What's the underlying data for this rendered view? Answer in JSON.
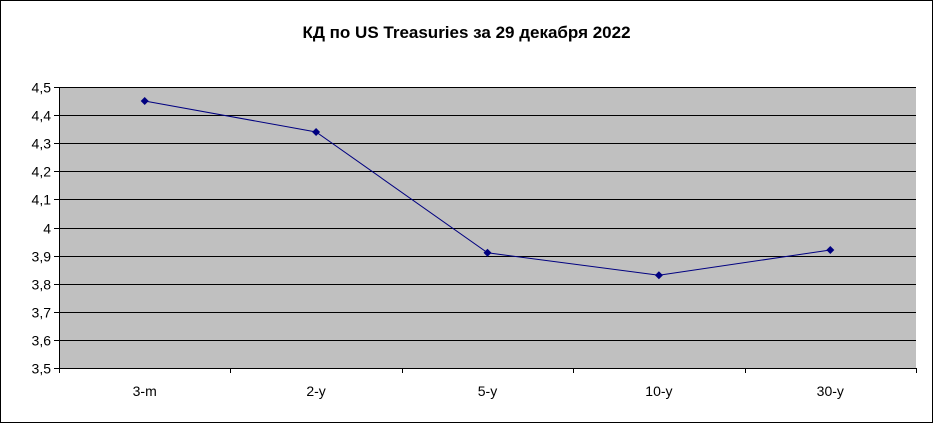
{
  "chart_data": {
    "type": "line",
    "title": "КД по US Treasuries за 29 декабря 2022",
    "xlabel": "",
    "ylabel": "",
    "categories": [
      "3-m",
      "2-y",
      "5-y",
      "10-y",
      "30-y"
    ],
    "series": [
      {
        "values": [
          4.45,
          4.34,
          3.91,
          3.83,
          3.92
        ]
      }
    ],
    "ylim": [
      3.5,
      4.5
    ],
    "yticks": [
      "3,5",
      "3,6",
      "3,7",
      "3,8",
      "3,9",
      "4",
      "4,1",
      "4,2",
      "4,3",
      "4,4",
      "4,5"
    ],
    "grid": "horizontal",
    "legend": "none",
    "colors": {
      "plot_background": "#c0c0c0",
      "line": "#000080",
      "marker": "#000080",
      "gridline": "#000000"
    }
  }
}
